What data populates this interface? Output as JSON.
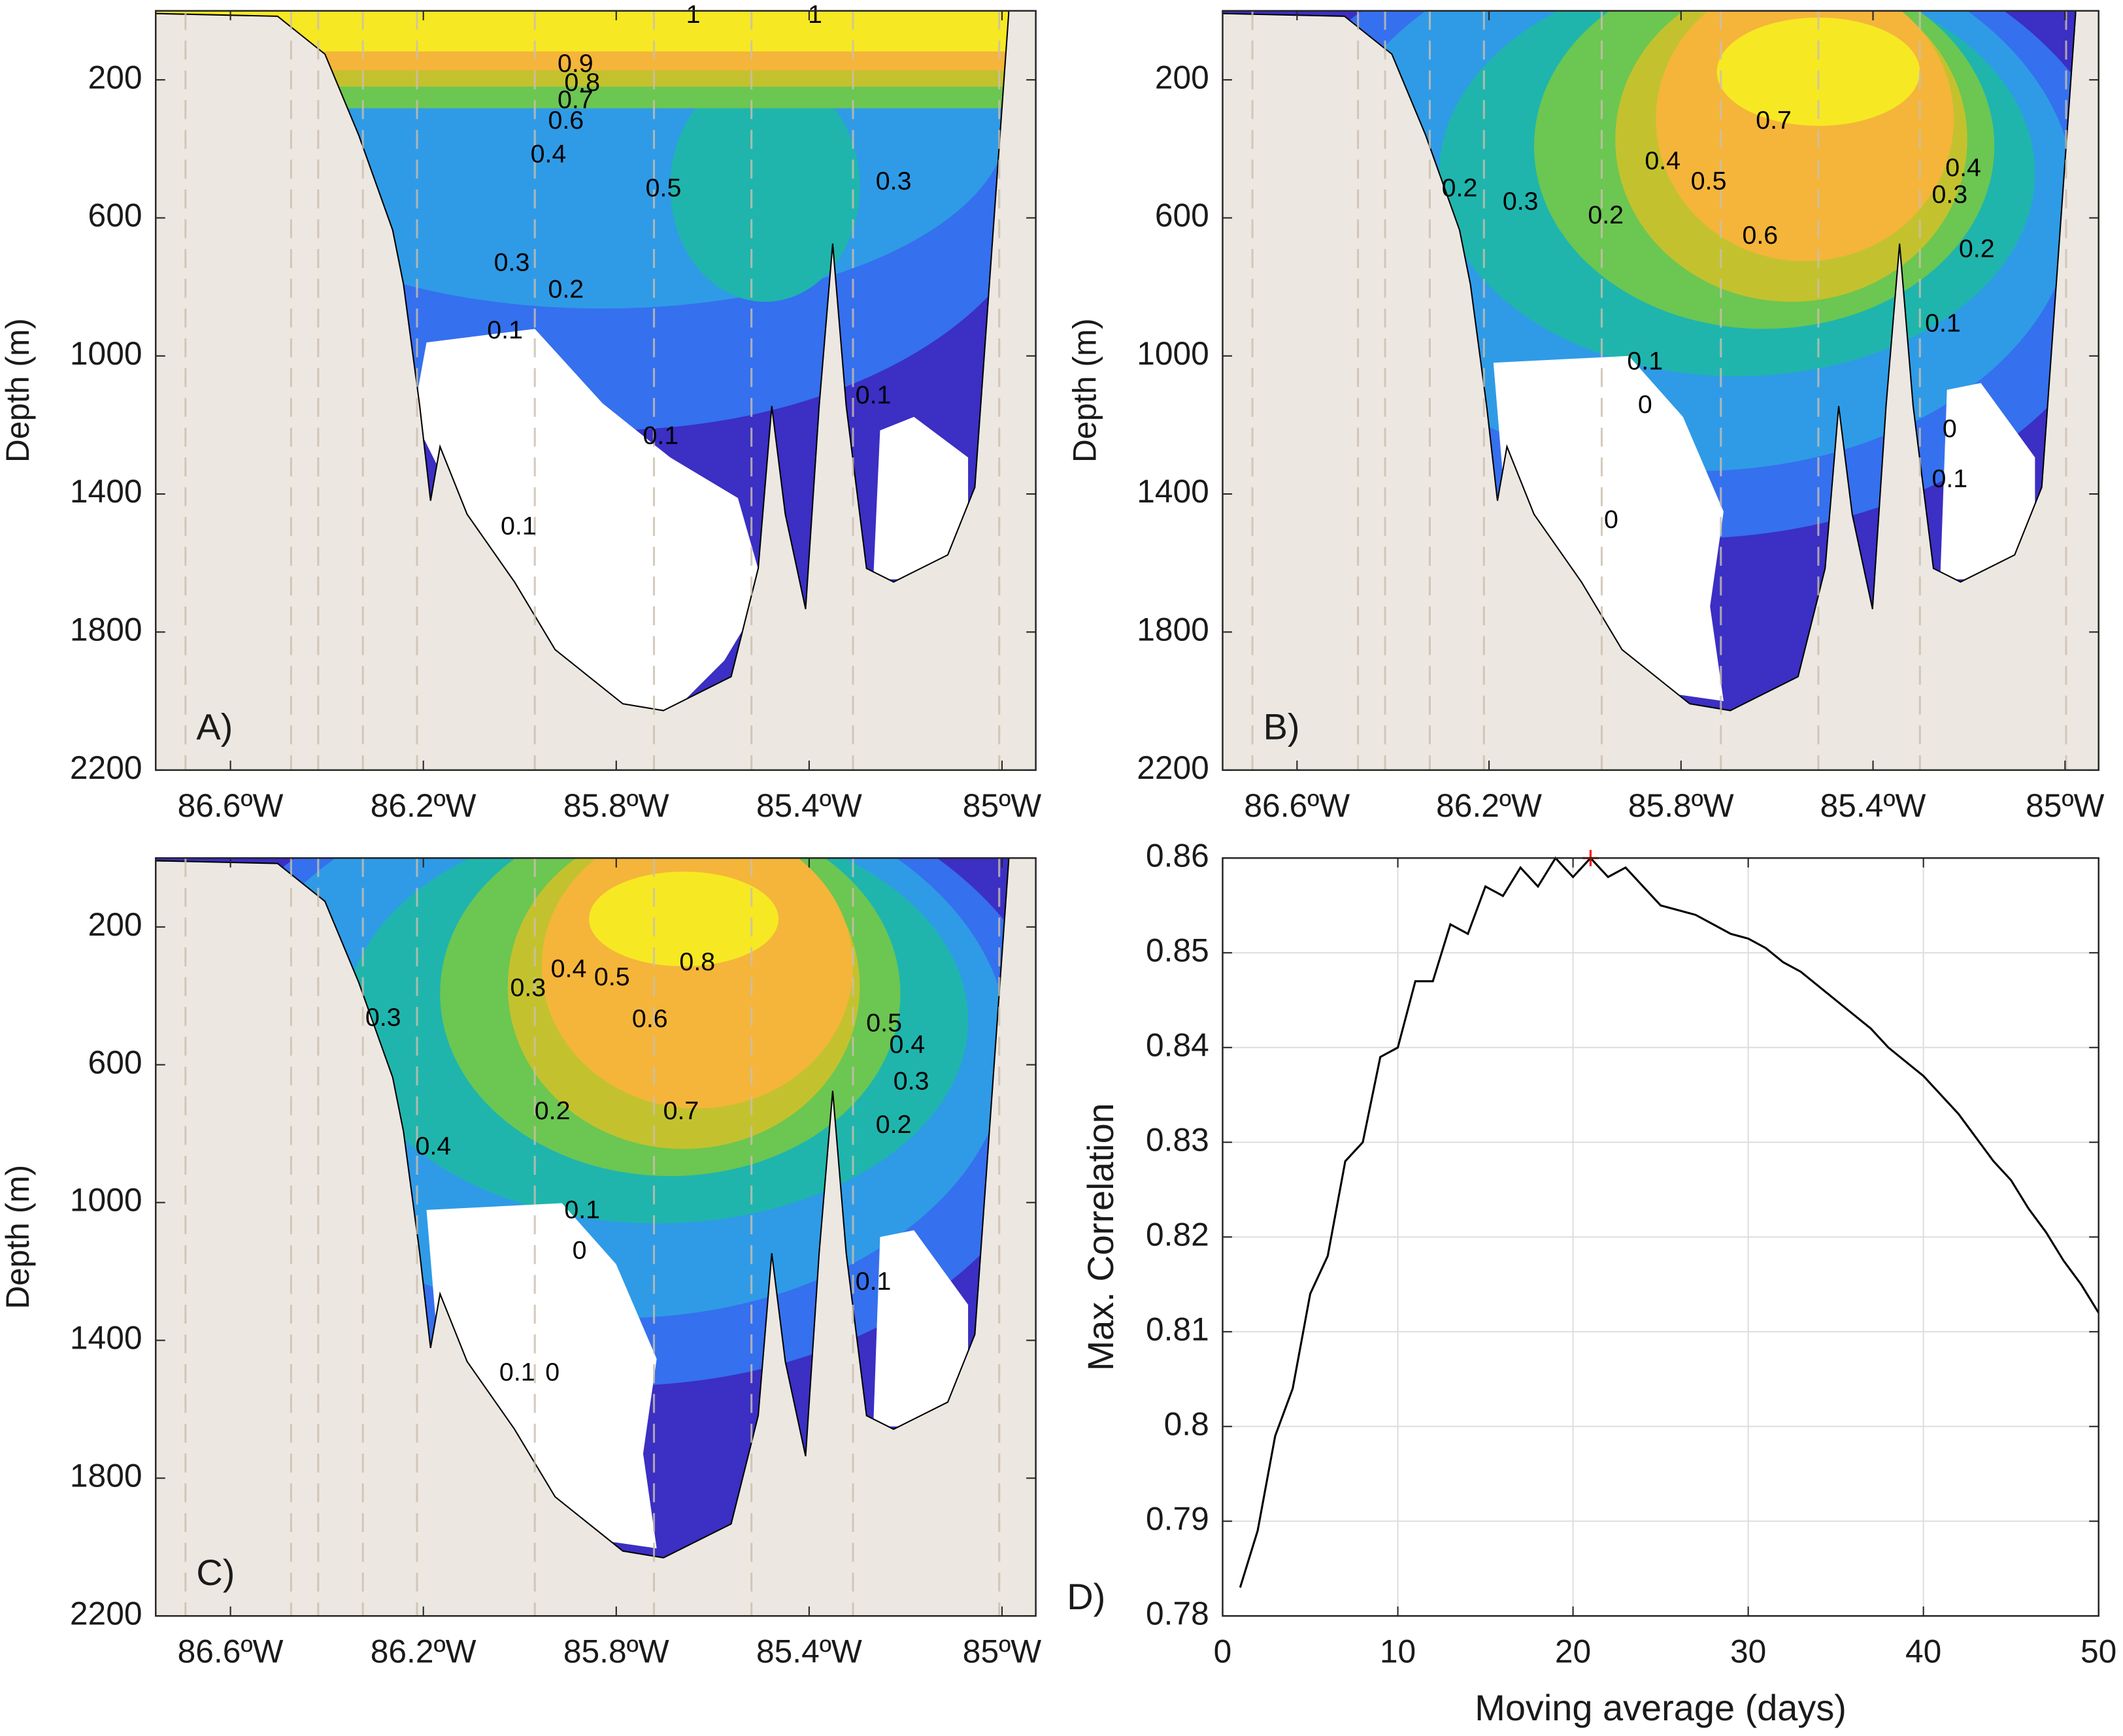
{
  "chart_data": [
    {
      "type": "contour",
      "panel_label": "A)",
      "ylabel": "Depth (m)",
      "ylim": [
        0,
        2200
      ],
      "y_reversed": true,
      "yticks": [
        200,
        600,
        1000,
        1400,
        1800,
        2200
      ],
      "xlim": [
        -86.755,
        -84.93
      ],
      "xticks": [
        {
          "value": -86.6,
          "label": "86.6ºW"
        },
        {
          "value": -86.2,
          "label": "86.2ºW"
        },
        {
          "value": -85.8,
          "label": "85.8ºW"
        },
        {
          "value": -85.4,
          "label": "85.4ºW"
        },
        {
          "value": -85,
          "label": "85ºW"
        }
      ],
      "contour_labels": [
        1,
        1,
        0.9,
        0.8,
        0.7,
        0.6,
        0.4,
        0.5,
        0.3,
        0.3,
        0.2,
        0.1,
        0.1,
        0.1,
        0.1
      ]
    },
    {
      "type": "contour",
      "panel_label": "B)",
      "ylabel": "Depth (m)",
      "ylim": [
        0,
        2200
      ],
      "y_reversed": true,
      "yticks": [
        200,
        600,
        1000,
        1400,
        1800,
        2200
      ],
      "xlim": [
        -86.755,
        -84.93
      ],
      "xticks": [
        {
          "value": -86.6,
          "label": "86.6ºW"
        },
        {
          "value": -86.2,
          "label": "86.2ºW"
        },
        {
          "value": -85.8,
          "label": "85.8ºW"
        },
        {
          "value": -85.4,
          "label": "85.4ºW"
        },
        {
          "value": -85,
          "label": "85ºW"
        }
      ],
      "contour_labels": [
        0.7,
        0.4,
        0.5,
        0.6,
        0.4,
        0.3,
        0.2,
        0.2,
        0.3,
        0.2,
        0.1,
        0.1,
        0,
        0,
        0.1,
        0
      ]
    },
    {
      "type": "contour",
      "panel_label": "C)",
      "ylabel": "Depth (m)",
      "ylim": [
        0,
        2200
      ],
      "y_reversed": true,
      "yticks": [
        200,
        600,
        1000,
        1400,
        1800,
        2200
      ],
      "xlim": [
        -86.755,
        -84.93
      ],
      "xticks": [
        {
          "value": -86.6,
          "label": "86.6ºW"
        },
        {
          "value": -86.2,
          "label": "86.2ºW"
        },
        {
          "value": -85.8,
          "label": "85.8ºW"
        },
        {
          "value": -85.4,
          "label": "85.4ºW"
        },
        {
          "value": -85,
          "label": "85ºW"
        }
      ],
      "contour_labels": [
        0.8,
        0.3,
        0.3,
        0.4,
        0.5,
        0.6,
        0.7,
        0.5,
        0.4,
        0.3,
        0.2,
        0.4,
        0.2,
        0.1,
        0,
        0.1,
        0.1,
        0
      ]
    },
    {
      "type": "line",
      "panel_label": "D)",
      "xlabel": "Moving average (days)",
      "ylabel": "Max. Correlation",
      "xlim": [
        0,
        50
      ],
      "ylim": [
        0.78,
        0.86
      ],
      "xticks": [
        0,
        10,
        20,
        30,
        40,
        50
      ],
      "yticks": [
        0.78,
        0.79,
        0.8,
        0.81,
        0.82,
        0.83,
        0.84,
        0.85,
        0.86
      ],
      "grid": true,
      "color": "#000000",
      "x": [
        1,
        2,
        3,
        4,
        5,
        6,
        7,
        8,
        9,
        10,
        11,
        12,
        13,
        14,
        15,
        16,
        17,
        18,
        19,
        20,
        21,
        22,
        23,
        24,
        25,
        26,
        27,
        28,
        29,
        30,
        31,
        32,
        33,
        34,
        35,
        36,
        37,
        38,
        39,
        40,
        41,
        42,
        43,
        44,
        45,
        46,
        47,
        48,
        49,
        50
      ],
      "values": [
        0.783,
        0.789,
        0.799,
        0.804,
        0.814,
        0.818,
        0.828,
        0.83,
        0.839,
        0.84,
        0.847,
        0.847,
        0.853,
        0.852,
        0.857,
        0.856,
        0.859,
        0.857,
        0.86,
        0.858,
        0.86,
        0.858,
        0.859,
        0.857,
        0.855,
        0.8545,
        0.854,
        0.853,
        0.852,
        0.8515,
        0.8505,
        0.849,
        0.848,
        0.8465,
        0.845,
        0.8435,
        0.842,
        0.84,
        0.8385,
        0.837,
        0.835,
        0.833,
        0.8305,
        0.828,
        0.826,
        0.823,
        0.8205,
        0.8175,
        0.815,
        0.812
      ],
      "highlight": {
        "x": 21,
        "y": 0.86,
        "color": "#ff0000"
      }
    }
  ]
}
